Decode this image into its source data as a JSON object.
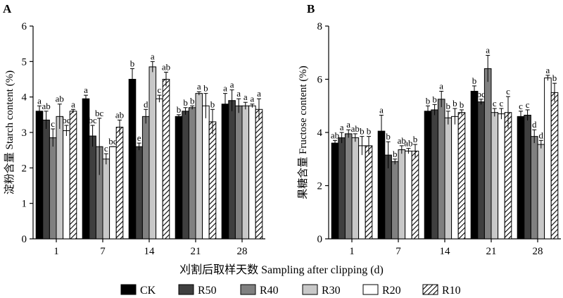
{
  "chart_data": [
    {
      "type": "bar",
      "panel_label": "A",
      "ylabel": "淀粉含量 Starch content (%)",
      "ylim": [
        0,
        6
      ],
      "yticks": [
        0,
        1,
        2,
        3,
        4,
        5,
        6
      ],
      "categories": [
        "1",
        "7",
        "14",
        "21",
        "28"
      ],
      "series": [
        {
          "name": "CK",
          "values": [
            3.6,
            3.95,
            4.5,
            3.45,
            3.8
          ],
          "errors": [
            0.15,
            0.1,
            0.3,
            0.05,
            0.3
          ],
          "letters": [
            "a",
            "a",
            "b",
            "b",
            "a"
          ]
        },
        {
          "name": "R50",
          "values": [
            3.35,
            2.9,
            2.6,
            3.6,
            3.9
          ],
          "errors": [
            0.25,
            0.3,
            0.1,
            0.1,
            0.3
          ],
          "letters": [
            "ab",
            "bc",
            "e",
            "b",
            "a"
          ]
        },
        {
          "name": "R40",
          "values": [
            2.85,
            2.6,
            3.45,
            3.7,
            3.75
          ],
          "errors": [
            0.25,
            0.8,
            0.2,
            0.05,
            0.2
          ],
          "letters": [
            "c",
            "bc",
            "d",
            "b",
            "a"
          ]
        },
        {
          "name": "R30",
          "values": [
            3.45,
            2.25,
            4.85,
            4.1,
            3.75
          ],
          "errors": [
            0.35,
            0.15,
            0.15,
            0.05,
            0.1
          ],
          "letters": [
            "ab",
            "c",
            "a",
            "a",
            "a"
          ]
        },
        {
          "name": "R20",
          "values": [
            3.05,
            2.6,
            3.95,
            3.75,
            3.75
          ],
          "errors": [
            0.15,
            0.0,
            0.1,
            0.35,
            0.05
          ],
          "letters": [
            "bc",
            "bc",
            "c",
            "b",
            "a"
          ]
        },
        {
          "name": "R10",
          "values": [
            3.6,
            3.15,
            4.5,
            3.3,
            3.65
          ],
          "errors": [
            0.05,
            0.2,
            0.2,
            0.35,
            0.3
          ],
          "letters": [
            "a",
            "ab",
            "ab",
            "b",
            "a"
          ]
        }
      ]
    },
    {
      "type": "bar",
      "panel_label": "B",
      "ylabel": "果糖含量 Fructose content (%)",
      "ylim": [
        0,
        8
      ],
      "yticks": [
        0,
        2,
        4,
        6,
        8
      ],
      "categories": [
        "1",
        "7",
        "14",
        "21",
        "28"
      ],
      "series": [
        {
          "name": "CK",
          "values": [
            3.6,
            4.05,
            4.8,
            5.55,
            4.6
          ],
          "errors": [
            0.1,
            0.6,
            0.2,
            0.2,
            0.2
          ],
          "letters": [
            "ab",
            "a",
            "b",
            "b",
            "c"
          ]
        },
        {
          "name": "R50",
          "values": [
            3.8,
            3.15,
            4.85,
            5.15,
            4.65
          ],
          "errors": [
            0.2,
            0.5,
            0.2,
            0.1,
            0.2
          ],
          "letters": [
            "a",
            "b",
            "b",
            "bc",
            "c"
          ]
        },
        {
          "name": "R40",
          "values": [
            3.95,
            2.9,
            5.25,
            6.4,
            3.85
          ],
          "errors": [
            0.15,
            0.1,
            0.3,
            0.5,
            0.25
          ],
          "letters": [
            "a",
            "b",
            "a",
            "a",
            "d"
          ]
        },
        {
          "name": "R30",
          "values": [
            3.8,
            3.35,
            4.55,
            4.75,
            3.55
          ],
          "errors": [
            0.15,
            0.15,
            0.25,
            0.15,
            0.15
          ],
          "letters": [
            "ab",
            "ab",
            "b",
            "c",
            "d"
          ]
        },
        {
          "name": "R20",
          "values": [
            3.5,
            3.3,
            4.6,
            4.7,
            6.05
          ],
          "errors": [
            0.35,
            0.1,
            0.3,
            0.2,
            0.1
          ],
          "letters": [
            "b",
            "ab",
            "b",
            "c",
            "a"
          ]
        },
        {
          "name": "R10",
          "values": [
            3.5,
            3.3,
            4.75,
            4.75,
            5.5
          ],
          "errors": [
            0.35,
            0.25,
            0.1,
            0.6,
            0.35
          ],
          "letters": [
            "b",
            "b",
            "b",
            "c",
            "b"
          ]
        }
      ]
    }
  ],
  "shared": {
    "xlabel": "刈割后取样天数 Sampling after clipping (d)"
  },
  "legend": [
    {
      "label": "CK",
      "fill": "#000000"
    },
    {
      "label": "R50",
      "fill": "#3f3f3f"
    },
    {
      "label": "R40",
      "fill": "#808080"
    },
    {
      "label": "R30",
      "fill": "#c8c8c8"
    },
    {
      "label": "R20",
      "fill": "#ffffff"
    },
    {
      "label": "R10",
      "fill": "hatch"
    }
  ]
}
